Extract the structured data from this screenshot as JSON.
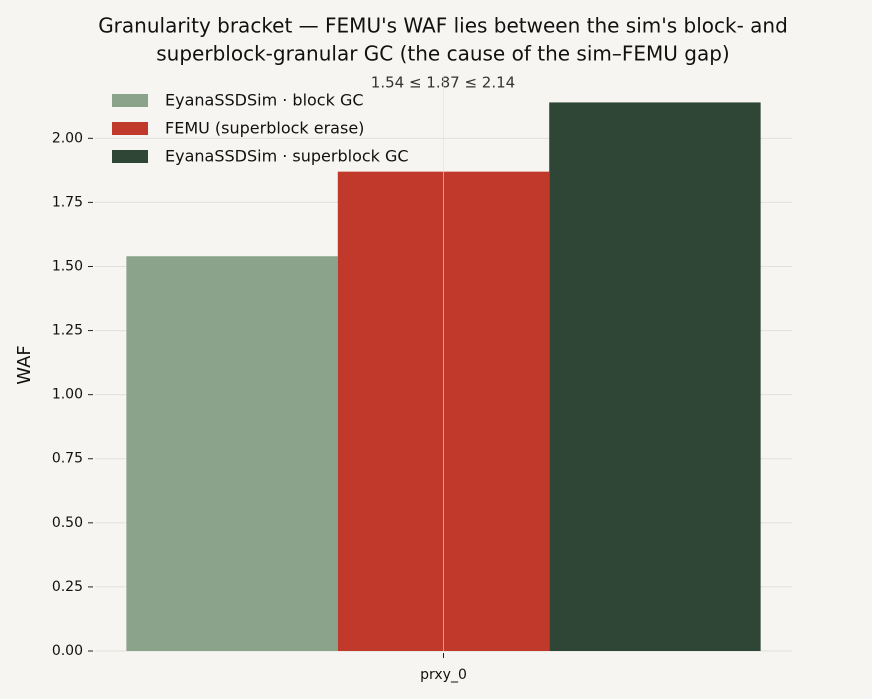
{
  "chart_data": {
    "type": "bar",
    "title": [
      "Granularity bracket — FEMU's WAF lies between the sim's block- and",
      "superblock-granular GC (the cause of the sim–FEMU gap)"
    ],
    "annotation": "1.54 ≤ 1.87 ≤ 2.14",
    "ylabel": "WAF",
    "categories": [
      "prxy_0"
    ],
    "series": [
      {
        "name": "EyanaSSDSim · block GC",
        "color": "#8aa38a",
        "values": [
          1.54
        ]
      },
      {
        "name": "FEMU (superblock erase)",
        "color": "#c0392b",
        "values": [
          1.87
        ]
      },
      {
        "name": "EyanaSSDSim · superblock GC",
        "color": "#2f4637",
        "values": [
          2.14
        ]
      }
    ],
    "ylim": [
      0,
      2.247
    ],
    "yticks": [
      {
        "value": 0,
        "label": "0.00"
      },
      {
        "value": 0.25,
        "label": "0.25"
      },
      {
        "value": 0.5,
        "label": "0.50"
      },
      {
        "value": 0.75,
        "label": "0.75"
      },
      {
        "value": 1,
        "label": "1.00"
      },
      {
        "value": 1.25,
        "label": "1.25"
      },
      {
        "value": 1.5,
        "label": "1.50"
      },
      {
        "value": 1.75,
        "label": "1.75"
      },
      {
        "value": 2,
        "label": "2.00"
      }
    ],
    "grid": true,
    "legend": "upper left"
  }
}
